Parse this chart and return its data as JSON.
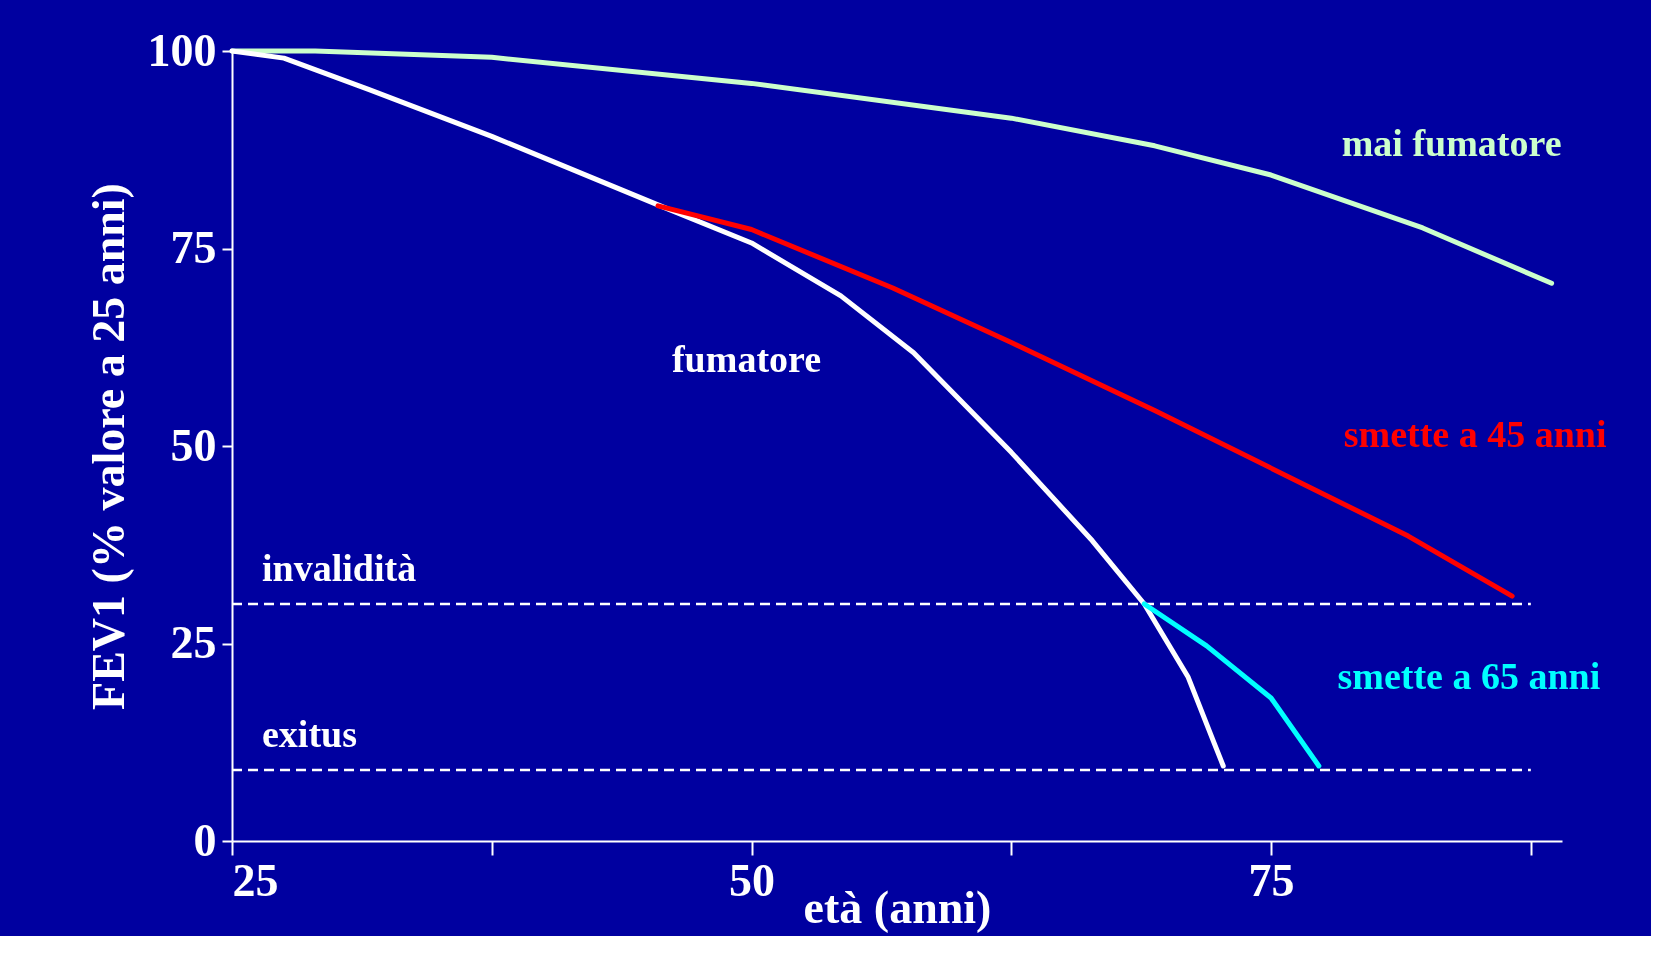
{
  "chart_data": {
    "type": "line",
    "xlabel": "età (anni)",
    "ylabel": "FEV1 (% valore a 25 anni)",
    "xlim": [
      25,
      89
    ],
    "ylim": [
      0,
      100
    ],
    "xticks": [
      25,
      {
        "value": 37.5,
        "label": null
      },
      50,
      {
        "value": 62.5,
        "label": null
      },
      75,
      {
        "value": 87.5,
        "label": null
      }
    ],
    "yticks": [
      0,
      25,
      50,
      75,
      100
    ],
    "grid": false,
    "marker": "none",
    "line_style": "solid",
    "series": [
      {
        "name": "mai fumatore",
        "color": "#ccffcc",
        "x": [
          25,
          29,
          37.5,
          50,
          62.5,
          69.4,
          75,
          82.3,
          88.5
        ],
        "values": [
          100,
          100,
          99.2,
          95.9,
          91.5,
          88,
          84.3,
          77.6,
          70.6
        ]
      },
      {
        "name": "fumatore",
        "color": "#ffffff",
        "x": [
          25,
          27.5,
          31.6,
          37.5,
          45.7,
          50,
          54.3,
          57.8,
          62.5,
          66.4,
          68.9,
          71,
          72.2,
          72.7
        ],
        "values": [
          100,
          99.1,
          95.1,
          89.2,
          80.3,
          75.7,
          69,
          61.8,
          49.2,
          38,
          30,
          20.8,
          12.8,
          9.5
        ]
      },
      {
        "name": "smette a 45 anni",
        "color": "#ff0000",
        "x": [
          45.5,
          50,
          56.8,
          62.5,
          69.4,
          75,
          81.6,
          86.6
        ],
        "values": [
          80.4,
          77.4,
          70,
          63.1,
          54.5,
          47.2,
          38.6,
          31
        ]
      },
      {
        "name": "smette a 65 anni",
        "color": "#00ffff",
        "x": [
          68.9,
          71.9,
          75,
          77.3
        ],
        "values": [
          30,
          24.7,
          18.1,
          9.5
        ]
      }
    ],
    "ref_lines": [
      {
        "axis": "y",
        "value": 30,
        "label": "invalidità",
        "color": "#ffffff",
        "line_style": "dashed"
      },
      {
        "axis": "y",
        "value": 9,
        "label": "exitus",
        "color": "#ffffff",
        "line_style": "dashed"
      }
    ]
  }
}
